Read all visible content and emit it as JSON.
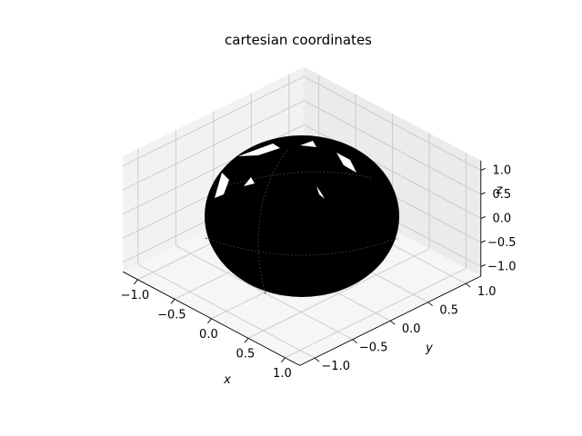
{
  "chart_data": {
    "type": "surface3d",
    "title": "cartesian coordinates",
    "xlabel": "x",
    "ylabel": "y",
    "zlabel": "z",
    "xlim": [
      -1.2,
      1.2
    ],
    "ylim": [
      -1.2,
      1.2
    ],
    "zlim": [
      -1.2,
      1.2
    ],
    "xticks": [
      "−1.0",
      "−0.5",
      "0.0",
      "0.5",
      "1.0"
    ],
    "yticks": [
      "−1.0",
      "−0.5",
      "0.0",
      "0.5",
      "1.0"
    ],
    "zticks": [
      "−1.0",
      "−0.5",
      "0.0",
      "0.5",
      "1.0"
    ],
    "grid": true,
    "surface": {
      "shape": "unit sphere",
      "radius": 1.0,
      "color": "#000000",
      "highlight_color": "#ffffff"
    },
    "pane_colors": {
      "left": "#f2f2f2",
      "right": "#ebebeb",
      "floor": "#f6f6f6"
    }
  }
}
